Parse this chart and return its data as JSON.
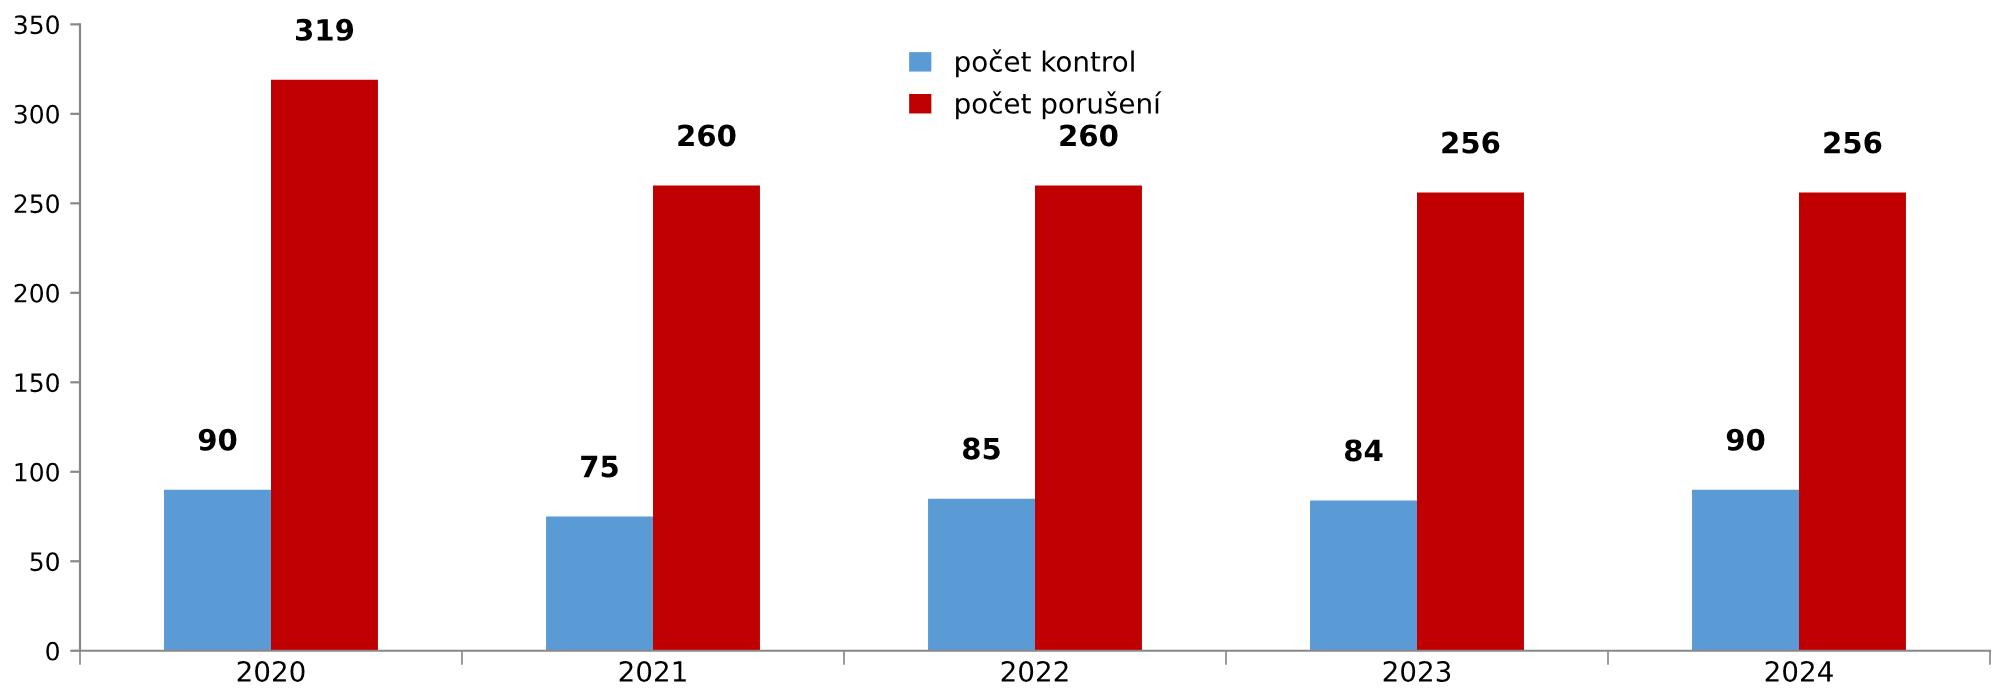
{
  "chart_data": {
    "type": "bar",
    "categories": [
      "2020",
      "2021",
      "2022",
      "2023",
      "2024"
    ],
    "series": [
      {
        "name": "počet kontrol",
        "color": "#5b9bd5",
        "values": [
          90,
          75,
          85,
          84,
          90
        ]
      },
      {
        "name": "počet porušení",
        "color": "#c00000",
        "values": [
          319,
          260,
          260,
          256,
          256
        ]
      }
    ],
    "ylim": [
      0,
      350
    ],
    "yticks": [
      0,
      50,
      100,
      150,
      200,
      250,
      300,
      350
    ],
    "data_labels": true,
    "legend": "top",
    "grid": false
  }
}
